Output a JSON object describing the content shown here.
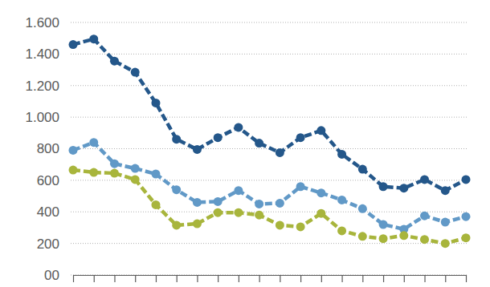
{
  "chart_data": {
    "type": "line",
    "categories": [
      null,
      null,
      null,
      null,
      null,
      null,
      null,
      null,
      null,
      null,
      null,
      null,
      null,
      null,
      null,
      null,
      null,
      null,
      null,
      null
    ],
    "series": [
      {
        "color": "#24578a",
        "marker": "circle",
        "line_style": "dashed",
        "values": [
          1460,
          1495,
          1355,
          1285,
          1090,
          860,
          795,
          870,
          935,
          835,
          775,
          870,
          915,
          765,
          670,
          560,
          550,
          605,
          535,
          605
        ]
      },
      {
        "color": "#6199c7",
        "marker": "circle",
        "line_style": "dashed",
        "values": [
          790,
          840,
          705,
          675,
          640,
          540,
          460,
          465,
          535,
          450,
          455,
          560,
          520,
          475,
          420,
          320,
          290,
          375,
          335,
          370
        ]
      },
      {
        "color": "#a8b53c",
        "marker": "circle",
        "line_style": "dashed",
        "values": [
          665,
          650,
          645,
          605,
          445,
          315,
          325,
          395,
          395,
          380,
          315,
          305,
          390,
          280,
          245,
          230,
          250,
          225,
          200,
          235
        ]
      }
    ],
    "ylim": [
      0,
      1600
    ],
    "yticks": [
      {
        "value": 0,
        "label": "00"
      },
      200,
      400,
      600,
      800,
      {
        "value": 1000,
        "label": "1.000"
      },
      {
        "value": 1200,
        "label": "1.200"
      },
      {
        "value": 1400,
        "label": "1.400"
      },
      {
        "value": 1600,
        "label": "1.600"
      }
    ],
    "grid": true
  }
}
